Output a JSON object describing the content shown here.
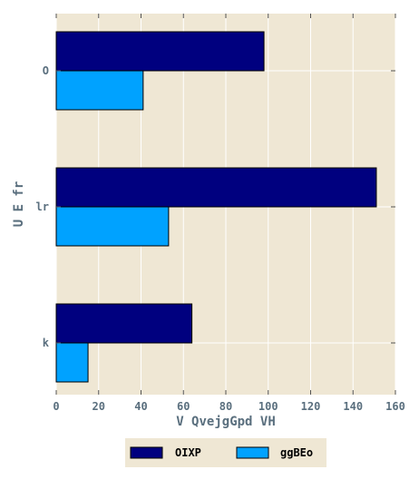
{
  "chart_data": {
    "type": "bar",
    "orientation": "horizontal",
    "categories": [
      "O",
      "lr",
      "k"
    ],
    "series": [
      {
        "name": "OIXP",
        "values": [
          98,
          151,
          64
        ],
        "color": "#00007f"
      },
      {
        "name": "ggBEo",
        "values": [
          41,
          53,
          15
        ],
        "color": "#00a2ff"
      }
    ],
    "xlabel": "V QvejgGpd VH",
    "ylabel": "U E fr",
    "xlim": [
      0,
      160
    ],
    "xticks": [
      0,
      20,
      40,
      60,
      80,
      100,
      120,
      140,
      160
    ],
    "grid": true,
    "legend": "bottom-center",
    "plot_background": "#efe7d4",
    "grid_color": "#ffffff"
  }
}
